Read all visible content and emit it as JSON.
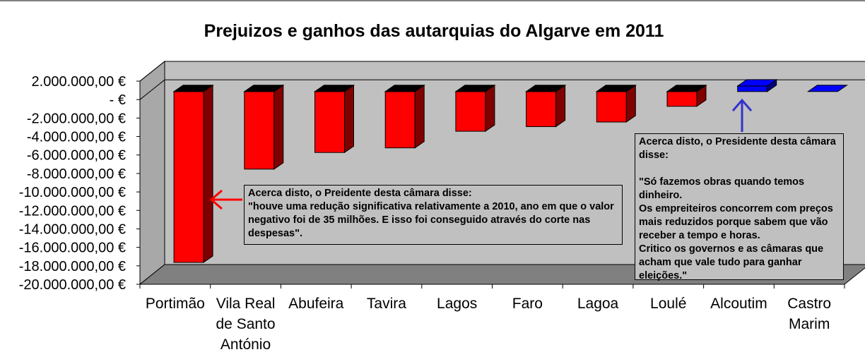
{
  "chart_data": {
    "type": "bar",
    "title": "Prejuizos e ganhos das autarquias do Algarve em 2011",
    "categories": [
      "Portimão",
      "Vila Real de Santo António",
      "Abufeira",
      "Tavira",
      "Lagos",
      "Faro",
      "Lagoa",
      "Loulé",
      "Alcoutim",
      "Castro Marim"
    ],
    "category_lines": [
      [
        "Portimão"
      ],
      [
        "Vila Real",
        "de Santo",
        "António"
      ],
      [
        "Abufeira"
      ],
      [
        "Tavira"
      ],
      [
        "Lagos"
      ],
      [
        "Faro"
      ],
      [
        "Lagoa"
      ],
      [
        "Loulé"
      ],
      [
        "Alcoutim"
      ],
      [
        "Castro",
        "Marim"
      ]
    ],
    "values": [
      -18500000,
      -8400000,
      -6600000,
      -6100000,
      -4300000,
      -3800000,
      -3300000,
      -1600000,
      600000,
      0
    ],
    "ylim": [
      -20000000,
      2000000
    ],
    "ytick_values": [
      2000000,
      0,
      -2000000,
      -4000000,
      -6000000,
      -8000000,
      -10000000,
      -12000000,
      -14000000,
      -16000000,
      -18000000,
      -20000000
    ],
    "ytick_labels": [
      "2.000.000,00 €",
      "-    €",
      "-2.000.000,00 €",
      "-4.000.000,00 €",
      "-6.000.000,00 €",
      "-8.000.000,00 €",
      "-10.000.000,00 €",
      "-12.000.000,00 €",
      "-14.000.000,00 €",
      "-16.000.000,00 €",
      "-18.000.000,00 €",
      "-20.000.000,00 €"
    ],
    "colors": {
      "negative": "#ff0000",
      "positive": "#0000ff",
      "wall": "#c0c0c0",
      "floor": "#808080"
    },
    "annotations": [
      {
        "target": "Portimão",
        "text": "Acerca disto, o Preidente desta câmara disse:\n\"houve uma redução significativa relativamente a 2010, ano em que o valor negativo foi de 35 milhões. E isso foi conseguido através do corte nas despesas\".",
        "arrow_color": "#ff0000"
      },
      {
        "target": "Alcoutim",
        "text": "Acerca disto, o Presidente desta câmara disse:\n\n\"Só fazemos obras quando temos dinheiro.\nOs empreiteiros concorrem com preços mais reduzidos porque sabem que vão receber a tempo e horas.\nCritico os governos e as câmaras que acham que vale tudo para ganhar eleições.\"",
        "arrow_color": "#3333cc"
      }
    ]
  }
}
